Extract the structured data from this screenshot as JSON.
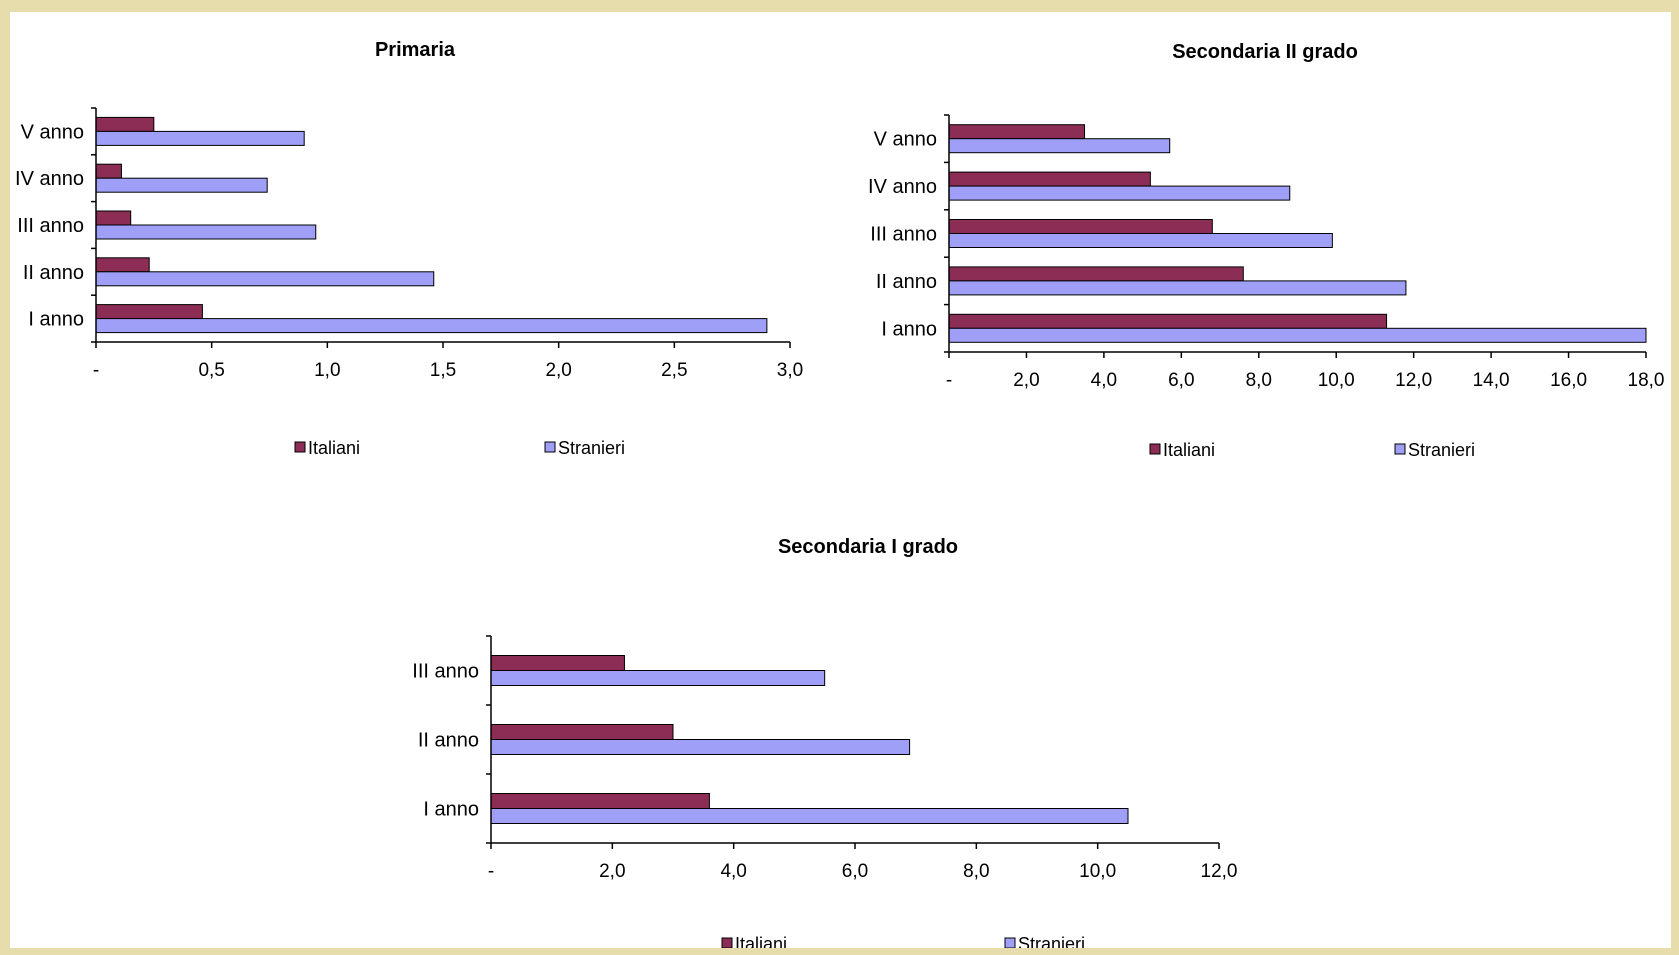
{
  "colors": {
    "italiani": "#8b2d55",
    "stranieri": "#9f9ff7",
    "frame": "#e7dcab"
  },
  "chart_data": [
    {
      "type": "bar",
      "orientation": "horizontal",
      "title": "Primaria",
      "categories": [
        "V anno",
        "IV anno",
        "III anno",
        "II anno",
        "I anno"
      ],
      "series": [
        {
          "name": "Italiani",
          "values": [
            0.25,
            0.11,
            0.15,
            0.23,
            0.46
          ]
        },
        {
          "name": "Stranieri",
          "values": [
            0.9,
            0.74,
            0.95,
            1.46,
            2.9
          ]
        }
      ],
      "xlim": [
        0,
        3.0
      ],
      "xticks": [
        "-",
        "0,5",
        "1,0",
        "1,5",
        "2,0",
        "2,5",
        "3,0"
      ],
      "legend": [
        "Italiani",
        "Stranieri"
      ],
      "legend_position": "bottom",
      "grid": false
    },
    {
      "type": "bar",
      "orientation": "horizontal",
      "title": "Secondaria II grado",
      "categories": [
        "V anno",
        "IV anno",
        "III anno",
        "II anno",
        "I anno"
      ],
      "series": [
        {
          "name": "Italiani",
          "values": [
            3.5,
            5.2,
            6.8,
            7.6,
            11.3
          ]
        },
        {
          "name": "Stranieri",
          "values": [
            5.7,
            8.8,
            9.9,
            11.8,
            18.0
          ]
        }
      ],
      "xlim": [
        0,
        18.0
      ],
      "xticks": [
        "-",
        "2,0",
        "4,0",
        "6,0",
        "8,0",
        "10,0",
        "12,0",
        "14,0",
        "16,0",
        "18,0"
      ],
      "legend": [
        "Italiani",
        "Stranieri"
      ],
      "legend_position": "bottom",
      "grid": false
    },
    {
      "type": "bar",
      "orientation": "horizontal",
      "title": "Secondaria I grado",
      "categories": [
        "III anno",
        "II anno",
        "I anno"
      ],
      "series": [
        {
          "name": "Italiani",
          "values": [
            2.2,
            3.0,
            3.6
          ]
        },
        {
          "name": "Stranieri",
          "values": [
            5.5,
            6.9,
            10.5
          ]
        }
      ],
      "xlim": [
        0,
        12.0
      ],
      "xticks": [
        "-",
        "2,0",
        "4,0",
        "6,0",
        "8,0",
        "10,0",
        "12,0"
      ],
      "legend": [
        "Italiani",
        "Stranieri"
      ],
      "legend_position": "bottom",
      "grid": false
    }
  ]
}
